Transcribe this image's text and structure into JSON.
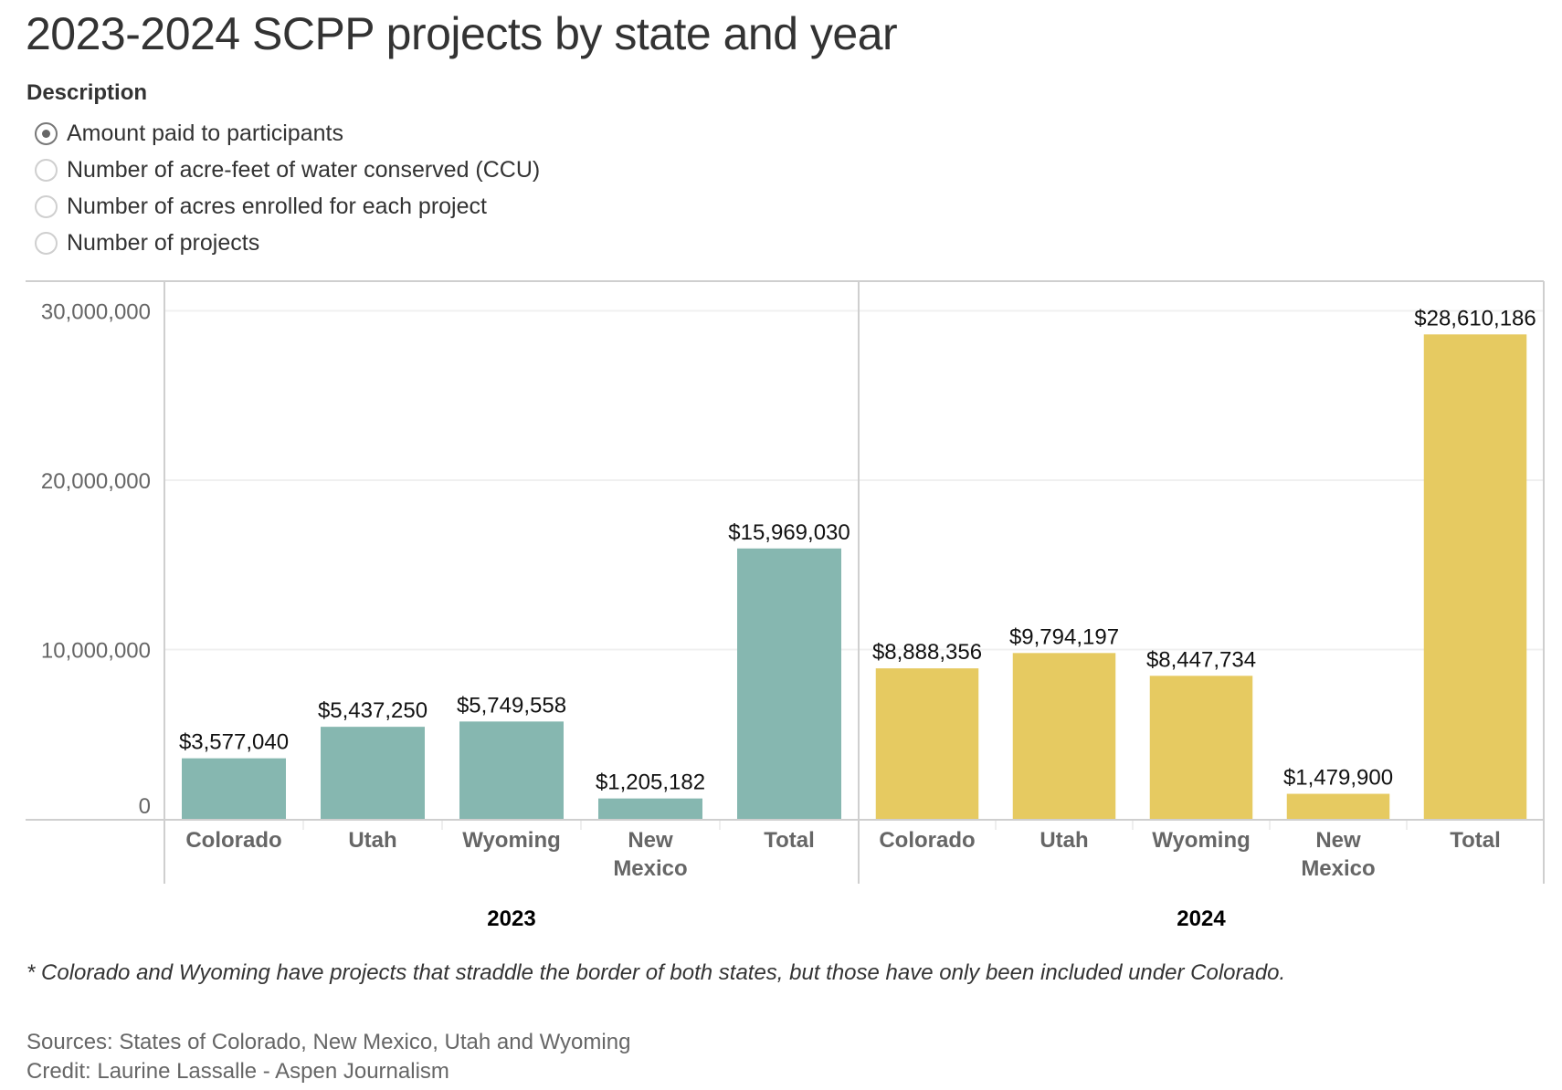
{
  "title": "2023-2024 SCPP projects by state and year",
  "description": {
    "label": "Description",
    "options": [
      {
        "label": "Amount paid to participants",
        "selected": true
      },
      {
        "label": "Number of acre-feet of water conserved (CCU)",
        "selected": false
      },
      {
        "label": "Number of acres enrolled for each project",
        "selected": false
      },
      {
        "label": "Number of projects",
        "selected": false
      }
    ]
  },
  "colors": {
    "2023": "#86b7b0",
    "2024": "#e6ca61"
  },
  "chart_data": {
    "type": "bar",
    "title": "2023-2024 SCPP projects by state and year",
    "xlabel": "",
    "ylabel": "",
    "ylim": [
      0,
      30000000
    ],
    "yticks": [
      0,
      10000000,
      20000000,
      30000000
    ],
    "ytick_labels": [
      "0",
      "10,000,000",
      "20,000,000",
      "30,000,000"
    ],
    "grid": true,
    "groups": [
      {
        "year": "2023",
        "categories": [
          "Colorado",
          "Utah",
          "Wyoming",
          "New Mexico",
          "Total"
        ],
        "category_lines": [
          [
            "Colorado"
          ],
          [
            "Utah"
          ],
          [
            "Wyoming"
          ],
          [
            "New",
            "Mexico"
          ],
          [
            "Total"
          ]
        ],
        "values": [
          3577040,
          5437250,
          5749558,
          1205182,
          15969030
        ],
        "labels": [
          "$3,577,040",
          "$5,437,250",
          "$5,749,558",
          "$1,205,182",
          "$15,969,030"
        ]
      },
      {
        "year": "2024",
        "categories": [
          "Colorado",
          "Utah",
          "Wyoming",
          "New Mexico",
          "Total"
        ],
        "category_lines": [
          [
            "Colorado"
          ],
          [
            "Utah"
          ],
          [
            "Wyoming"
          ],
          [
            "New",
            "Mexico"
          ],
          [
            "Total"
          ]
        ],
        "values": [
          8888356,
          9794197,
          8447734,
          1479900,
          28610186
        ],
        "labels": [
          "$8,888,356",
          "$9,794,197",
          "$8,447,734",
          "$1,479,900",
          "$28,610,186"
        ]
      }
    ]
  },
  "footnote": "* Colorado and Wyoming have projects that straddle the border of both states, but those have only been included under Colorado.",
  "sources": "Sources: States of Colorado, New Mexico, Utah and Wyoming",
  "credit": "Credit: Laurine Lassalle - Aspen Journalism"
}
